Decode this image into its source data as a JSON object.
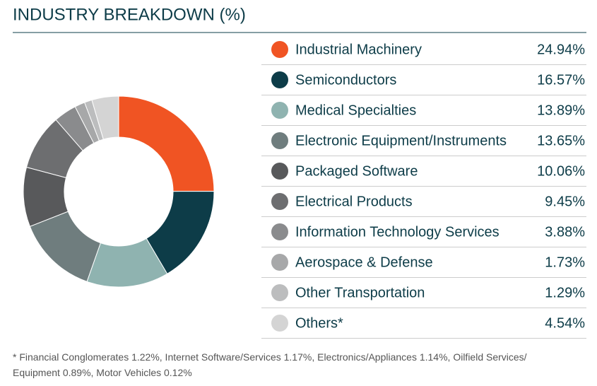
{
  "chart_data": {
    "type": "donut",
    "title": "INDUSTRY BREAKDOWN (%)",
    "categories": [
      "Industrial Machinery",
      "Semiconductors",
      "Medical Specialties",
      "Electronic Equipment/Instruments",
      "Packaged Software",
      "Electrical Products",
      "Information Technology Services",
      "Aerospace & Defense",
      "Other Transportation",
      "Others*"
    ],
    "values": [
      24.94,
      16.57,
      13.89,
      13.65,
      10.06,
      9.45,
      3.88,
      1.73,
      1.29,
      4.54
    ],
    "value_labels": [
      "24.94%",
      "16.57%",
      "13.89%",
      "13.65%",
      "10.06%",
      "9.45%",
      "3.88%",
      "1.73%",
      "1.29%",
      "4.54%"
    ],
    "colors": [
      "#f05423",
      "#0d3c48",
      "#8fb3b0",
      "#6f7d7e",
      "#58595b",
      "#6d6e70",
      "#8a8b8d",
      "#a7a8a9",
      "#bcbdbe",
      "#d4d4d4"
    ],
    "footnote": "* Financial Conglomerates 1.22%, Internet Software/Services 1.17%, Electronics/Appliances 1.14%, Oilfield Services/ Equipment 0.89%, Motor Vehicles 0.12%"
  }
}
